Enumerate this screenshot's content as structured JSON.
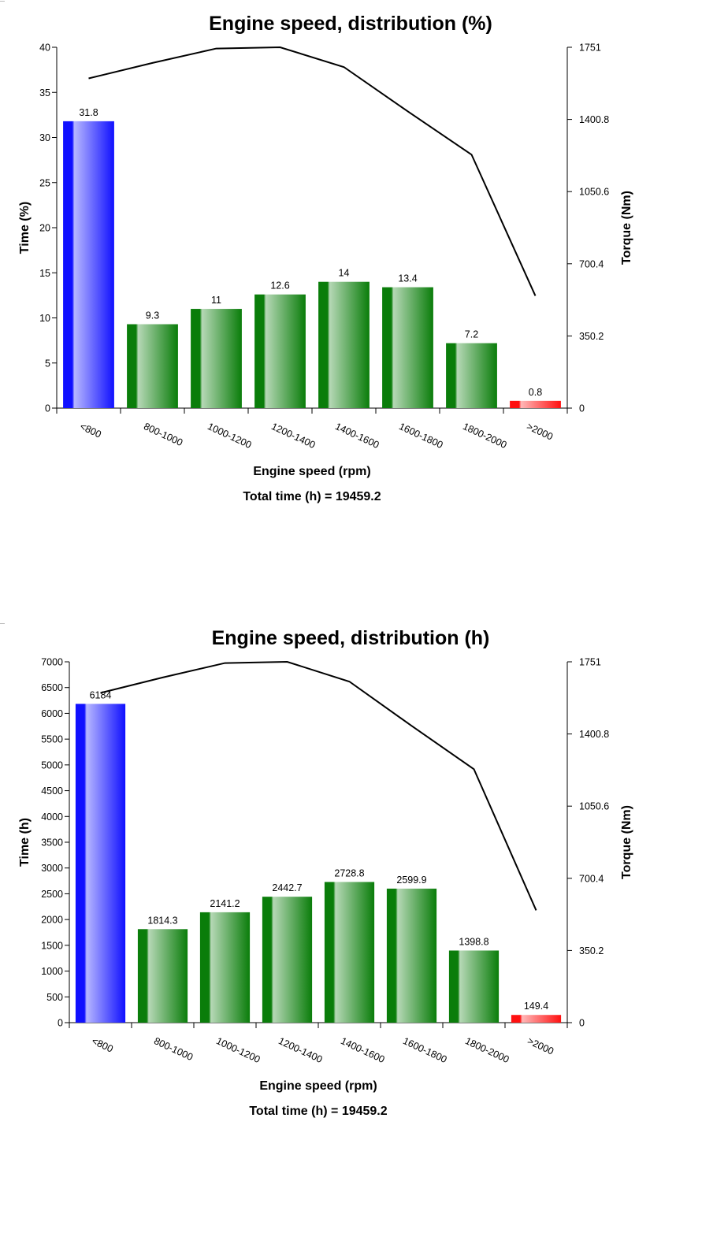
{
  "chart_data": [
    {
      "type": "bar",
      "title": "Engine speed, distribution (%)",
      "xlabel": "Engine speed (rpm)",
      "ylabel": "Time (%)",
      "y2label": "Torque (Nm)",
      "footer": "Total time (h) = 19459.2",
      "categories": [
        "<800",
        "800-1000",
        "1000-1200",
        "1200-1400",
        "1400-1600",
        "1600-1800",
        "1800-2000",
        ">2000"
      ],
      "values": [
        31.8,
        9.3,
        11,
        12.6,
        14,
        13.4,
        7.2,
        0.8
      ],
      "value_labels": [
        "31.8",
        "9.3",
        "11",
        "12.6",
        "14",
        "13.4",
        "7.2",
        "0.8"
      ],
      "bar_colors": [
        "#1010ff",
        "#0a7d0a",
        "#0a7d0a",
        "#0a7d0a",
        "#0a7d0a",
        "#0a7d0a",
        "#0a7d0a",
        "#ff1010"
      ],
      "ylim": [
        0,
        40
      ],
      "yticks": [
        "0",
        "5",
        "10",
        "15",
        "20",
        "25",
        "30",
        "35",
        "40"
      ],
      "y2lim": [
        0,
        1751
      ],
      "y2ticks": [
        "0",
        "350.2",
        "700.4",
        "1050.6",
        "1400.8",
        "1751"
      ],
      "torque_line": [
        1600,
        1675,
        1745,
        1751,
        1655,
        1440,
        1230,
        545
      ],
      "grid": false
    },
    {
      "type": "bar",
      "title": "Engine speed, distribution (h)",
      "xlabel": "Engine speed (rpm)",
      "ylabel": "Time (h)",
      "y2label": "Torque (Nm)",
      "footer": "Total time (h) = 19459.2",
      "categories": [
        "<800",
        "800-1000",
        "1000-1200",
        "1200-1400",
        "1400-1600",
        "1600-1800",
        "1800-2000",
        ">2000"
      ],
      "values": [
        6184,
        1814.3,
        2141.2,
        2442.7,
        2728.8,
        2599.9,
        1398.8,
        149.4
      ],
      "value_labels": [
        "6184",
        "1814.3",
        "2141.2",
        "2442.7",
        "2728.8",
        "2599.9",
        "1398.8",
        "149.4"
      ],
      "bar_colors": [
        "#1010ff",
        "#0a7d0a",
        "#0a7d0a",
        "#0a7d0a",
        "#0a7d0a",
        "#0a7d0a",
        "#0a7d0a",
        "#ff1010"
      ],
      "ylim": [
        0,
        7000
      ],
      "yticks": [
        "0",
        "500",
        "1000",
        "1500",
        "2000",
        "2500",
        "3000",
        "3500",
        "4000",
        "4500",
        "5000",
        "5500",
        "6000",
        "6500",
        "7000"
      ],
      "y2lim": [
        0,
        1751
      ],
      "y2ticks": [
        "0",
        "350.2",
        "700.4",
        "1050.6",
        "1400.8",
        "1751"
      ],
      "torque_line": [
        1600,
        1675,
        1745,
        1751,
        1655,
        1440,
        1230,
        545
      ],
      "grid": false
    }
  ]
}
